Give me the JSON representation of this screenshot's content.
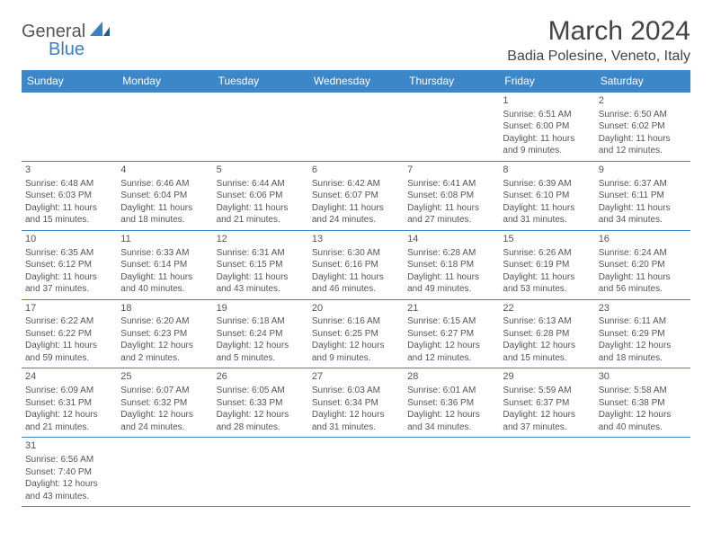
{
  "logo": {
    "part1": "General",
    "part2": "Blue"
  },
  "title": "March 2024",
  "location": "Badia Polesine, Veneto, Italy",
  "colors": {
    "header_bg": "#3b87c8",
    "header_text": "#ffffff",
    "border": "#3b87c8",
    "text": "#555555",
    "logo_blue": "#3b7fc4"
  },
  "dayHeaders": [
    "Sunday",
    "Monday",
    "Tuesday",
    "Wednesday",
    "Thursday",
    "Friday",
    "Saturday"
  ],
  "weeks": [
    [
      null,
      null,
      null,
      null,
      null,
      {
        "n": "1",
        "sr": "6:51 AM",
        "ss": "6:00 PM",
        "dl": "11 hours and 9 minutes."
      },
      {
        "n": "2",
        "sr": "6:50 AM",
        "ss": "6:02 PM",
        "dl": "11 hours and 12 minutes."
      }
    ],
    [
      {
        "n": "3",
        "sr": "6:48 AM",
        "ss": "6:03 PM",
        "dl": "11 hours and 15 minutes."
      },
      {
        "n": "4",
        "sr": "6:46 AM",
        "ss": "6:04 PM",
        "dl": "11 hours and 18 minutes."
      },
      {
        "n": "5",
        "sr": "6:44 AM",
        "ss": "6:06 PM",
        "dl": "11 hours and 21 minutes."
      },
      {
        "n": "6",
        "sr": "6:42 AM",
        "ss": "6:07 PM",
        "dl": "11 hours and 24 minutes."
      },
      {
        "n": "7",
        "sr": "6:41 AM",
        "ss": "6:08 PM",
        "dl": "11 hours and 27 minutes."
      },
      {
        "n": "8",
        "sr": "6:39 AM",
        "ss": "6:10 PM",
        "dl": "11 hours and 31 minutes."
      },
      {
        "n": "9",
        "sr": "6:37 AM",
        "ss": "6:11 PM",
        "dl": "11 hours and 34 minutes."
      }
    ],
    [
      {
        "n": "10",
        "sr": "6:35 AM",
        "ss": "6:12 PM",
        "dl": "11 hours and 37 minutes."
      },
      {
        "n": "11",
        "sr": "6:33 AM",
        "ss": "6:14 PM",
        "dl": "11 hours and 40 minutes."
      },
      {
        "n": "12",
        "sr": "6:31 AM",
        "ss": "6:15 PM",
        "dl": "11 hours and 43 minutes."
      },
      {
        "n": "13",
        "sr": "6:30 AM",
        "ss": "6:16 PM",
        "dl": "11 hours and 46 minutes."
      },
      {
        "n": "14",
        "sr": "6:28 AM",
        "ss": "6:18 PM",
        "dl": "11 hours and 49 minutes."
      },
      {
        "n": "15",
        "sr": "6:26 AM",
        "ss": "6:19 PM",
        "dl": "11 hours and 53 minutes."
      },
      {
        "n": "16",
        "sr": "6:24 AM",
        "ss": "6:20 PM",
        "dl": "11 hours and 56 minutes."
      }
    ],
    [
      {
        "n": "17",
        "sr": "6:22 AM",
        "ss": "6:22 PM",
        "dl": "11 hours and 59 minutes."
      },
      {
        "n": "18",
        "sr": "6:20 AM",
        "ss": "6:23 PM",
        "dl": "12 hours and 2 minutes."
      },
      {
        "n": "19",
        "sr": "6:18 AM",
        "ss": "6:24 PM",
        "dl": "12 hours and 5 minutes."
      },
      {
        "n": "20",
        "sr": "6:16 AM",
        "ss": "6:25 PM",
        "dl": "12 hours and 9 minutes."
      },
      {
        "n": "21",
        "sr": "6:15 AM",
        "ss": "6:27 PM",
        "dl": "12 hours and 12 minutes."
      },
      {
        "n": "22",
        "sr": "6:13 AM",
        "ss": "6:28 PM",
        "dl": "12 hours and 15 minutes."
      },
      {
        "n": "23",
        "sr": "6:11 AM",
        "ss": "6:29 PM",
        "dl": "12 hours and 18 minutes."
      }
    ],
    [
      {
        "n": "24",
        "sr": "6:09 AM",
        "ss": "6:31 PM",
        "dl": "12 hours and 21 minutes."
      },
      {
        "n": "25",
        "sr": "6:07 AM",
        "ss": "6:32 PM",
        "dl": "12 hours and 24 minutes."
      },
      {
        "n": "26",
        "sr": "6:05 AM",
        "ss": "6:33 PM",
        "dl": "12 hours and 28 minutes."
      },
      {
        "n": "27",
        "sr": "6:03 AM",
        "ss": "6:34 PM",
        "dl": "12 hours and 31 minutes."
      },
      {
        "n": "28",
        "sr": "6:01 AM",
        "ss": "6:36 PM",
        "dl": "12 hours and 34 minutes."
      },
      {
        "n": "29",
        "sr": "5:59 AM",
        "ss": "6:37 PM",
        "dl": "12 hours and 37 minutes."
      },
      {
        "n": "30",
        "sr": "5:58 AM",
        "ss": "6:38 PM",
        "dl": "12 hours and 40 minutes."
      }
    ],
    [
      {
        "n": "31",
        "sr": "6:56 AM",
        "ss": "7:40 PM",
        "dl": "12 hours and 43 minutes."
      },
      null,
      null,
      null,
      null,
      null,
      null
    ]
  ],
  "labels": {
    "sunrise": "Sunrise:",
    "sunset": "Sunset:",
    "daylight": "Daylight:"
  }
}
